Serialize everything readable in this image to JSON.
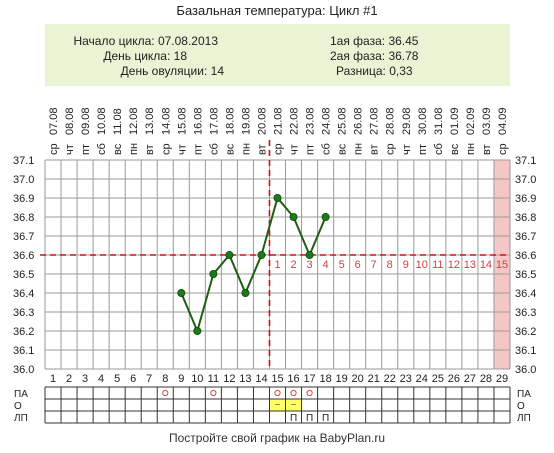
{
  "title": "Базальная температура: Цикл #1",
  "info": {
    "left": [
      {
        "label": "Начало цикла:",
        "value": "07.08.2013"
      },
      {
        "label": "День цикла:",
        "value": "18"
      },
      {
        "label": "День овуляции:",
        "value": "14"
      }
    ],
    "right": [
      {
        "label": "1ая фаза:",
        "value": "36.45"
      },
      {
        "label": "2ая фаза:",
        "value": "36.78"
      },
      {
        "label": "Разница:",
        "value": "0,33"
      }
    ]
  },
  "footer": "Постройте свой график на BabyPlan.ru",
  "colors": {
    "grid": "#9a9a9a",
    "line": "#1d5e12",
    "marker": "#1d7a1a",
    "threshold": "#cc1111",
    "highlight_day": "#f4c6c6",
    "luteal_numbers": "#cc4444",
    "table_cell": "#ffff66",
    "circle": "#dd4444"
  },
  "chart_data": {
    "type": "line",
    "title": "Базальная температура: Цикл #1",
    "days": [
      "1",
      "2",
      "3",
      "4",
      "5",
      "6",
      "7",
      "8",
      "9",
      "10",
      "11",
      "12",
      "13",
      "14",
      "15",
      "16",
      "17",
      "18",
      "19",
      "20",
      "21",
      "22",
      "23",
      "24",
      "25",
      "26",
      "27",
      "28",
      "29"
    ],
    "weekdays": [
      "ср",
      "чт",
      "пт",
      "сб",
      "вс",
      "пн",
      "вт",
      "ср",
      "чт",
      "пт",
      "сб",
      "вс",
      "пн",
      "вт",
      "ср",
      "чт",
      "пт",
      "сб",
      "вс",
      "пн",
      "вт",
      "ср",
      "чт",
      "пт",
      "сб",
      "вс",
      "пн",
      "вт",
      "ср"
    ],
    "dates": [
      "07.08",
      "08.08",
      "09.08",
      "10.08",
      "11.08",
      "12.08",
      "13.08",
      "14.08",
      "15.08",
      "16.08",
      "17.08",
      "18.08",
      "19.08",
      "20.08",
      "21.08",
      "22.08",
      "23.08",
      "24.08",
      "25.08",
      "26.08",
      "27.08",
      "28.08",
      "29.08",
      "30.08",
      "31.08",
      "01.09",
      "02.09",
      "03.09",
      "04.09"
    ],
    "temperatures": [
      null,
      null,
      null,
      null,
      null,
      null,
      null,
      null,
      36.4,
      36.2,
      36.5,
      36.6,
      36.4,
      36.6,
      36.9,
      36.8,
      36.6,
      36.8,
      null,
      null,
      null,
      null,
      null,
      null,
      null,
      null,
      null,
      null,
      null
    ],
    "ylim": [
      36.0,
      37.1
    ],
    "yticks": [
      "36.0",
      "36.1",
      "36.2",
      "36.3",
      "36.4",
      "36.5",
      "36.6",
      "36.7",
      "36.8",
      "36.9",
      "37.0",
      "37.1"
    ],
    "coverline": 36.6,
    "ovulation_day": 14,
    "highlight_day": 29,
    "luteal_labels": [
      "1",
      "2",
      "3",
      "4",
      "5",
      "6",
      "7",
      "8",
      "9",
      "10",
      "11",
      "12",
      "13",
      "14",
      "15"
    ],
    "row_labels": [
      "ПА",
      "О",
      "ЛП"
    ],
    "pa_days": [
      8,
      11,
      15,
      16,
      17
    ],
    "o_days": [
      15,
      16
    ],
    "o_symbol": "~",
    "lp_days": [
      16,
      17,
      18
    ],
    "lp_symbol": "П"
  }
}
